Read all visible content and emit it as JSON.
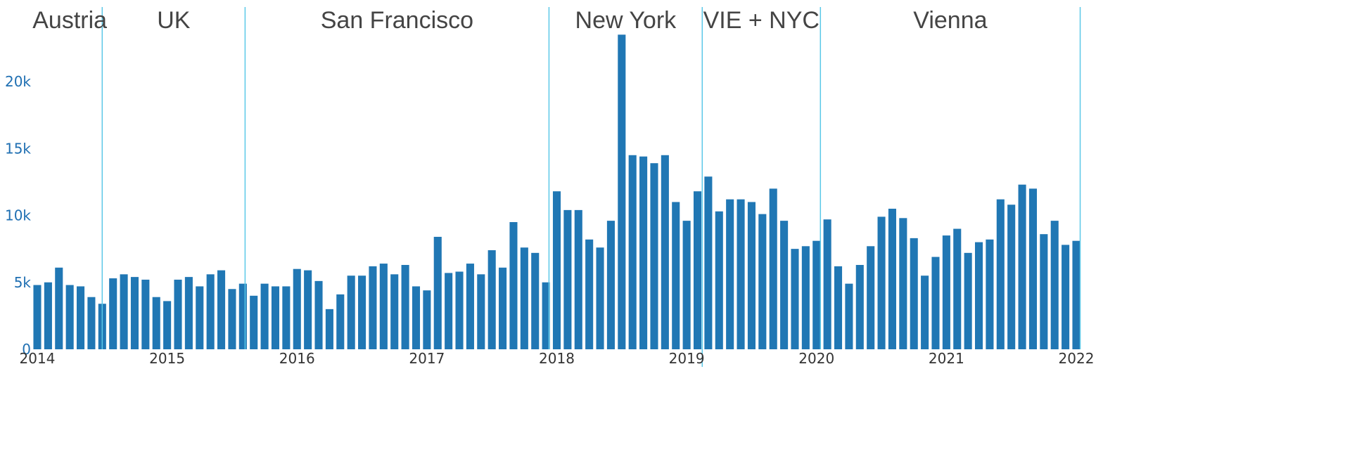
{
  "chart_data": {
    "type": "bar",
    "title": "",
    "xlabel": "",
    "ylabel": "",
    "ylim": [
      0,
      23600
    ],
    "y_ticks": [
      {
        "value": 0,
        "label": "0"
      },
      {
        "value": 5000,
        "label": "5k"
      },
      {
        "value": 10000,
        "label": "10k"
      },
      {
        "value": 15000,
        "label": "15k"
      },
      {
        "value": 20000,
        "label": "20k"
      }
    ],
    "x_ticks": [
      {
        "value": 2014,
        "label": "2014"
      },
      {
        "value": 2015,
        "label": "2015"
      },
      {
        "value": 2016,
        "label": "2016"
      },
      {
        "value": 2017,
        "label": "2017"
      },
      {
        "value": 2018,
        "label": "2018"
      },
      {
        "value": 2019,
        "label": "2019"
      },
      {
        "value": 2020,
        "label": "2020"
      },
      {
        "value": 2021,
        "label": "2021"
      },
      {
        "value": 2022,
        "label": "2022"
      }
    ],
    "grid": false,
    "bar_color": "#2077b4",
    "divider_color": "#5bc8e8",
    "regions": [
      {
        "label": "Austria",
        "start": 2014.0,
        "end": 2014.5
      },
      {
        "label": "UK",
        "start": 2014.5,
        "end": 2015.6
      },
      {
        "label": "San Francisco",
        "start": 2015.6,
        "end": 2017.94
      },
      {
        "label": "New York",
        "start": 2017.94,
        "end": 2019.12
      },
      {
        "label": "VIE + NYC",
        "start": 2019.12,
        "end": 2020.03
      },
      {
        "label": "Vienna",
        "start": 2020.03,
        "end": 2022.03
      }
    ],
    "dividers": [
      2014.5,
      2015.6,
      2017.94,
      2019.12,
      2020.03,
      2022.03
    ],
    "start_year": 2014,
    "values": [
      4800,
      5000,
      6100,
      4800,
      4700,
      3900,
      3400,
      5300,
      5600,
      5400,
      5200,
      3900,
      3600,
      5200,
      5400,
      4700,
      5600,
      5900,
      4500,
      4900,
      4000,
      4900,
      4700,
      4700,
      6000,
      5900,
      5100,
      3000,
      4100,
      5500,
      5500,
      6200,
      6400,
      5600,
      6300,
      4700,
      4400,
      8400,
      5700,
      5800,
      6400,
      5600,
      7400,
      6100,
      9500,
      7600,
      7200,
      5000,
      11800,
      10400,
      10400,
      8200,
      7600,
      9600,
      23500,
      14500,
      14400,
      13900,
      14500,
      11000,
      9600,
      11800,
      12900,
      10300,
      11200,
      11200,
      11000,
      10100,
      12000,
      9600,
      7500,
      7700,
      8100,
      9700,
      6200,
      4900,
      6300,
      7700,
      9900,
      10500,
      9800,
      8300,
      5500,
      6900,
      8500,
      9000,
      7200,
      8000,
      8200,
      11200,
      10800,
      12300,
      12000,
      8600,
      9600,
      7800,
      8100
    ]
  }
}
